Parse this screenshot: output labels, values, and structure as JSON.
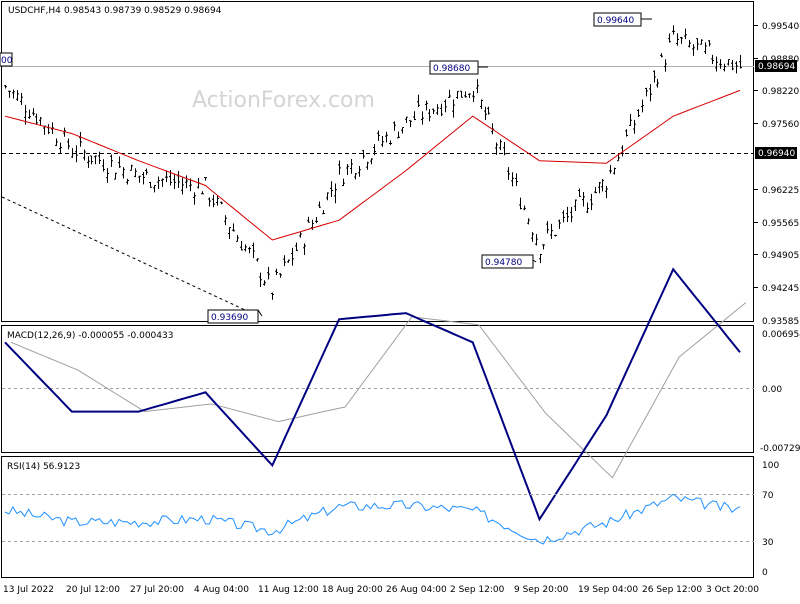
{
  "header": {
    "symbol_label": "USDCHF,H4",
    "ohlc_label": "0.98543 0.98739 0.98529 0.98694"
  },
  "watermark": "ActionForex.com",
  "price_axis": {
    "ticks": [
      "0.99540",
      "0.98880",
      "0.98220",
      "0.97560",
      "0.96225",
      "0.95565",
      "0.94905",
      "0.94245",
      "0.93585"
    ],
    "current_price": "0.98694",
    "level_line": "0.96940"
  },
  "annotations": {
    "low_1": "0.93690",
    "high_1": "0.98680",
    "low_2": "0.94780",
    "high_2": "0.99640",
    "left_clipped": "00"
  },
  "macd": {
    "label": "MACD(12,26,9) -0.000055 -0.000433",
    "ticks": [
      "0.006954",
      "0.00",
      "-0.007294"
    ]
  },
  "rsi": {
    "label": "RSI(14) 56.9123",
    "ticks": [
      "100",
      "70",
      "30",
      "0"
    ]
  },
  "time_axis": [
    "13 Jul 2022",
    "20 Jul 12:00",
    "27 Jul 20:00",
    "4 Aug 04:00",
    "11 Aug 12:00",
    "18 Aug 20:00",
    "26 Aug 04:00",
    "2 Sep 12:00",
    "9 Sep 20:00",
    "19 Sep 04:00",
    "26 Sep 12:00",
    "3 Oct 20:00"
  ],
  "colors": {
    "ma": "#d40000",
    "macd_main": "#000080",
    "macd_signal": "#a0a0a0",
    "rsi": "#1e90ff",
    "price_bars": "#000000"
  },
  "chart_data": {
    "type": "line",
    "title": "USDCHF,H4",
    "x": [
      "13 Jul 2022",
      "20 Jul 12:00",
      "27 Jul 20:00",
      "4 Aug 04:00",
      "11 Aug 12:00",
      "18 Aug 20:00",
      "26 Aug 04:00",
      "2 Sep 12:00",
      "9 Sep 20:00",
      "19 Sep 04:00",
      "26 Sep 12:00",
      "3 Oct 20:00"
    ],
    "ylim": [
      0.93585,
      0.998
    ],
    "series": [
      {
        "values": [
          0.983,
          0.9705,
          0.965,
          0.9625,
          0.942,
          0.965,
          0.9758,
          0.983,
          0.951,
          0.964,
          0.9925,
          0.9869
        ]
      },
      {
        "values": [
          0.977,
          0.9735,
          0.968,
          0.963,
          0.952,
          0.956,
          0.966,
          0.977,
          0.968,
          0.9675,
          0.977,
          0.9822
        ]
      }
    ],
    "annotations": [
      {
        "label": "0.93690",
        "x": "11 Aug 12:00",
        "y": 0.9369
      },
      {
        "label": "0.98680",
        "x": "2 Sep 12:00",
        "y": 0.9868
      },
      {
        "label": "0.94780",
        "x": "9 Sep 20:00",
        "y": 0.9478
      },
      {
        "label": "0.99640",
        "x": "26 Sep 12:00",
        "y": 0.9964
      }
    ],
    "reference_lines": [
      0.98694,
      0.9694
    ],
    "subcharts": [
      {
        "name": "MACD(12,26,9)",
        "ylim": [
          -0.007294,
          0.006954
        ],
        "last_values": [
          -5.5e-05,
          -0.000433
        ]
      },
      {
        "name": "RSI(14)",
        "ylim": [
          0,
          100
        ],
        "levels": [
          70,
          30
        ],
        "last_value": 56.9123
      }
    ]
  }
}
